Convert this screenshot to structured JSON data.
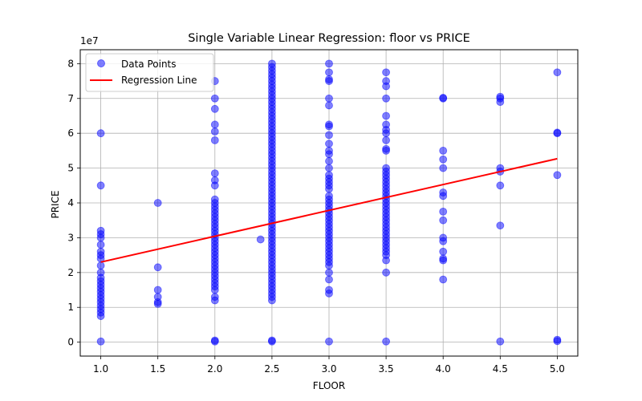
{
  "chart_data": {
    "type": "scatter",
    "title": "Single Variable Linear Regression: floor vs PRICE",
    "xlabel": "FLOOR",
    "ylabel": "PRICE",
    "y_offset_label": "1e7",
    "xlim": [
      0.82,
      5.18
    ],
    "ylim": [
      -0.4,
      8.4
    ],
    "x_ticks": [
      "1.0",
      "1.5",
      "2.0",
      "2.5",
      "3.0",
      "3.5",
      "4.0",
      "4.5",
      "5.0"
    ],
    "y_ticks": [
      "0",
      "1",
      "2",
      "3",
      "4",
      "5",
      "6",
      "7",
      "8"
    ],
    "grid": true,
    "legend_position": "upper-left",
    "colors": {
      "points": "#0000ff",
      "line": "#ff0000",
      "grid": "#b0b0b0"
    },
    "series": [
      {
        "name": "Data Points",
        "kind": "scatter",
        "points": [
          [
            1.0,
            0.02
          ],
          [
            1.0,
            0.75
          ],
          [
            1.0,
            0.85
          ],
          [
            1.0,
            0.95
          ],
          [
            1.0,
            1.05
          ],
          [
            1.0,
            1.15
          ],
          [
            1.0,
            1.25
          ],
          [
            1.0,
            1.35
          ],
          [
            1.0,
            1.45
          ],
          [
            1.0,
            1.55
          ],
          [
            1.0,
            1.65
          ],
          [
            1.0,
            1.75
          ],
          [
            1.0,
            1.85
          ],
          [
            1.0,
            2.0
          ],
          [
            1.0,
            2.2
          ],
          [
            1.0,
            2.4
          ],
          [
            1.0,
            2.5
          ],
          [
            1.0,
            2.6
          ],
          [
            1.0,
            2.8
          ],
          [
            1.0,
            3.0
          ],
          [
            1.0,
            3.1
          ],
          [
            1.0,
            3.2
          ],
          [
            1.0,
            4.5
          ],
          [
            1.0,
            6.0
          ],
          [
            1.5,
            1.1
          ],
          [
            1.5,
            1.15
          ],
          [
            1.5,
            1.3
          ],
          [
            1.5,
            1.5
          ],
          [
            1.5,
            2.15
          ],
          [
            1.5,
            4.0
          ],
          [
            2.0,
            0.02
          ],
          [
            2.0,
            0.05
          ],
          [
            2.0,
            1.2
          ],
          [
            2.0,
            1.3
          ],
          [
            2.0,
            1.5
          ],
          [
            2.0,
            1.6
          ],
          [
            2.0,
            1.7
          ],
          [
            2.0,
            1.8
          ],
          [
            2.0,
            1.9
          ],
          [
            2.0,
            2.0
          ],
          [
            2.0,
            2.1
          ],
          [
            2.0,
            2.2
          ],
          [
            2.0,
            2.3
          ],
          [
            2.0,
            2.4
          ],
          [
            2.0,
            2.5
          ],
          [
            2.0,
            2.6
          ],
          [
            2.0,
            2.7
          ],
          [
            2.0,
            2.8
          ],
          [
            2.0,
            2.9
          ],
          [
            2.0,
            3.0
          ],
          [
            2.0,
            3.1
          ],
          [
            2.0,
            3.2
          ],
          [
            2.0,
            3.3
          ],
          [
            2.0,
            3.4
          ],
          [
            2.0,
            3.5
          ],
          [
            2.0,
            3.6
          ],
          [
            2.0,
            3.7
          ],
          [
            2.0,
            3.8
          ],
          [
            2.0,
            3.9
          ],
          [
            2.0,
            4.0
          ],
          [
            2.0,
            4.1
          ],
          [
            2.0,
            4.5
          ],
          [
            2.0,
            4.65
          ],
          [
            2.0,
            4.85
          ],
          [
            2.0,
            5.8
          ],
          [
            2.0,
            6.05
          ],
          [
            2.0,
            6.25
          ],
          [
            2.0,
            6.7
          ],
          [
            2.0,
            7.0
          ],
          [
            2.0,
            7.5
          ],
          [
            2.4,
            2.95
          ],
          [
            2.5,
            0.02
          ],
          [
            2.5,
            0.05
          ],
          [
            2.5,
            1.2
          ],
          [
            2.5,
            1.3
          ],
          [
            2.5,
            1.4
          ],
          [
            2.5,
            1.5
          ],
          [
            2.5,
            1.6
          ],
          [
            2.5,
            1.7
          ],
          [
            2.5,
            1.8
          ],
          [
            2.5,
            1.9
          ],
          [
            2.5,
            2.0
          ],
          [
            2.5,
            2.1
          ],
          [
            2.5,
            2.2
          ],
          [
            2.5,
            2.3
          ],
          [
            2.5,
            2.4
          ],
          [
            2.5,
            2.5
          ],
          [
            2.5,
            2.6
          ],
          [
            2.5,
            2.7
          ],
          [
            2.5,
            2.8
          ],
          [
            2.5,
            2.9
          ],
          [
            2.5,
            3.0
          ],
          [
            2.5,
            3.1
          ],
          [
            2.5,
            3.2
          ],
          [
            2.5,
            3.3
          ],
          [
            2.5,
            3.4
          ],
          [
            2.5,
            3.5
          ],
          [
            2.5,
            3.6
          ],
          [
            2.5,
            3.7
          ],
          [
            2.5,
            3.8
          ],
          [
            2.5,
            3.9
          ],
          [
            2.5,
            4.0
          ],
          [
            2.5,
            4.1
          ],
          [
            2.5,
            4.2
          ],
          [
            2.5,
            4.3
          ],
          [
            2.5,
            4.4
          ],
          [
            2.5,
            4.5
          ],
          [
            2.5,
            4.6
          ],
          [
            2.5,
            4.7
          ],
          [
            2.5,
            4.8
          ],
          [
            2.5,
            4.9
          ],
          [
            2.5,
            5.0
          ],
          [
            2.5,
            5.1
          ],
          [
            2.5,
            5.2
          ],
          [
            2.5,
            5.3
          ],
          [
            2.5,
            5.4
          ],
          [
            2.5,
            5.5
          ],
          [
            2.5,
            5.6
          ],
          [
            2.5,
            5.7
          ],
          [
            2.5,
            5.8
          ],
          [
            2.5,
            5.9
          ],
          [
            2.5,
            6.0
          ],
          [
            2.5,
            6.1
          ],
          [
            2.5,
            6.2
          ],
          [
            2.5,
            6.3
          ],
          [
            2.5,
            6.4
          ],
          [
            2.5,
            6.5
          ],
          [
            2.5,
            6.6
          ],
          [
            2.5,
            6.7
          ],
          [
            2.5,
            6.8
          ],
          [
            2.5,
            6.9
          ],
          [
            2.5,
            7.0
          ],
          [
            2.5,
            7.1
          ],
          [
            2.5,
            7.2
          ],
          [
            2.5,
            7.3
          ],
          [
            2.5,
            7.4
          ],
          [
            2.5,
            7.5
          ],
          [
            2.5,
            7.6
          ],
          [
            2.5,
            7.7
          ],
          [
            2.5,
            7.8
          ],
          [
            2.5,
            7.9
          ],
          [
            2.5,
            8.0
          ],
          [
            3.0,
            0.02
          ],
          [
            3.0,
            1.4
          ],
          [
            3.0,
            1.5
          ],
          [
            3.0,
            1.8
          ],
          [
            3.0,
            2.0
          ],
          [
            3.0,
            2.2
          ],
          [
            3.0,
            2.3
          ],
          [
            3.0,
            2.4
          ],
          [
            3.0,
            2.5
          ],
          [
            3.0,
            2.6
          ],
          [
            3.0,
            2.7
          ],
          [
            3.0,
            2.8
          ],
          [
            3.0,
            2.9
          ],
          [
            3.0,
            3.0
          ],
          [
            3.0,
            3.1
          ],
          [
            3.0,
            3.2
          ],
          [
            3.0,
            3.3
          ],
          [
            3.0,
            3.4
          ],
          [
            3.0,
            3.5
          ],
          [
            3.0,
            3.6
          ],
          [
            3.0,
            3.7
          ],
          [
            3.0,
            3.8
          ],
          [
            3.0,
            3.9
          ],
          [
            3.0,
            4.0
          ],
          [
            3.0,
            4.1
          ],
          [
            3.0,
            4.2
          ],
          [
            3.0,
            4.4
          ],
          [
            3.0,
            4.5
          ],
          [
            3.0,
            4.6
          ],
          [
            3.0,
            4.7
          ],
          [
            3.0,
            4.8
          ],
          [
            3.0,
            5.0
          ],
          [
            3.0,
            5.2
          ],
          [
            3.0,
            5.4
          ],
          [
            3.0,
            5.5
          ],
          [
            3.0,
            5.7
          ],
          [
            3.0,
            5.95
          ],
          [
            3.0,
            6.2
          ],
          [
            3.0,
            6.25
          ],
          [
            3.0,
            6.8
          ],
          [
            3.0,
            7.0
          ],
          [
            3.0,
            7.5
          ],
          [
            3.0,
            7.55
          ],
          [
            3.0,
            7.75
          ],
          [
            3.0,
            8.0
          ],
          [
            3.5,
            0.02
          ],
          [
            3.5,
            2.0
          ],
          [
            3.5,
            2.35
          ],
          [
            3.5,
            2.5
          ],
          [
            3.5,
            2.6
          ],
          [
            3.5,
            2.7
          ],
          [
            3.5,
            2.8
          ],
          [
            3.5,
            2.9
          ],
          [
            3.5,
            3.0
          ],
          [
            3.5,
            3.1
          ],
          [
            3.5,
            3.2
          ],
          [
            3.5,
            3.3
          ],
          [
            3.5,
            3.4
          ],
          [
            3.5,
            3.5
          ],
          [
            3.5,
            3.6
          ],
          [
            3.5,
            3.7
          ],
          [
            3.5,
            3.8
          ],
          [
            3.5,
            3.9
          ],
          [
            3.5,
            4.0
          ],
          [
            3.5,
            4.1
          ],
          [
            3.5,
            4.2
          ],
          [
            3.5,
            4.3
          ],
          [
            3.5,
            4.4
          ],
          [
            3.5,
            4.5
          ],
          [
            3.5,
            4.6
          ],
          [
            3.5,
            4.7
          ],
          [
            3.5,
            4.8
          ],
          [
            3.5,
            4.9
          ],
          [
            3.5,
            5.0
          ],
          [
            3.5,
            5.5
          ],
          [
            3.5,
            5.55
          ],
          [
            3.5,
            5.8
          ],
          [
            3.5,
            6.0
          ],
          [
            3.5,
            6.1
          ],
          [
            3.5,
            6.25
          ],
          [
            3.5,
            6.5
          ],
          [
            3.5,
            7.0
          ],
          [
            3.5,
            7.35
          ],
          [
            3.5,
            7.5
          ],
          [
            3.5,
            7.75
          ],
          [
            4.0,
            1.8
          ],
          [
            4.0,
            2.35
          ],
          [
            4.0,
            2.4
          ],
          [
            4.0,
            2.6
          ],
          [
            4.0,
            2.9
          ],
          [
            4.0,
            3.0
          ],
          [
            4.0,
            3.5
          ],
          [
            4.0,
            3.75
          ],
          [
            4.0,
            4.2
          ],
          [
            4.0,
            4.3
          ],
          [
            4.0,
            5.0
          ],
          [
            4.0,
            5.25
          ],
          [
            4.0,
            5.5
          ],
          [
            4.0,
            7.0
          ],
          [
            4.0,
            7.02
          ],
          [
            4.5,
            0.02
          ],
          [
            4.5,
            3.35
          ],
          [
            4.5,
            4.5
          ],
          [
            4.5,
            4.9
          ],
          [
            4.5,
            5.0
          ],
          [
            4.5,
            6.9
          ],
          [
            4.5,
            7.0
          ],
          [
            4.5,
            7.05
          ],
          [
            5.0,
            0.03
          ],
          [
            5.0,
            0.07
          ],
          [
            5.0,
            4.8
          ],
          [
            5.0,
            6.0
          ],
          [
            5.0,
            6.02
          ],
          [
            5.0,
            7.75
          ]
        ]
      },
      {
        "name": "Regression Line",
        "kind": "line",
        "points": [
          [
            1.0,
            2.3
          ],
          [
            5.0,
            5.27
          ]
        ]
      }
    ]
  }
}
